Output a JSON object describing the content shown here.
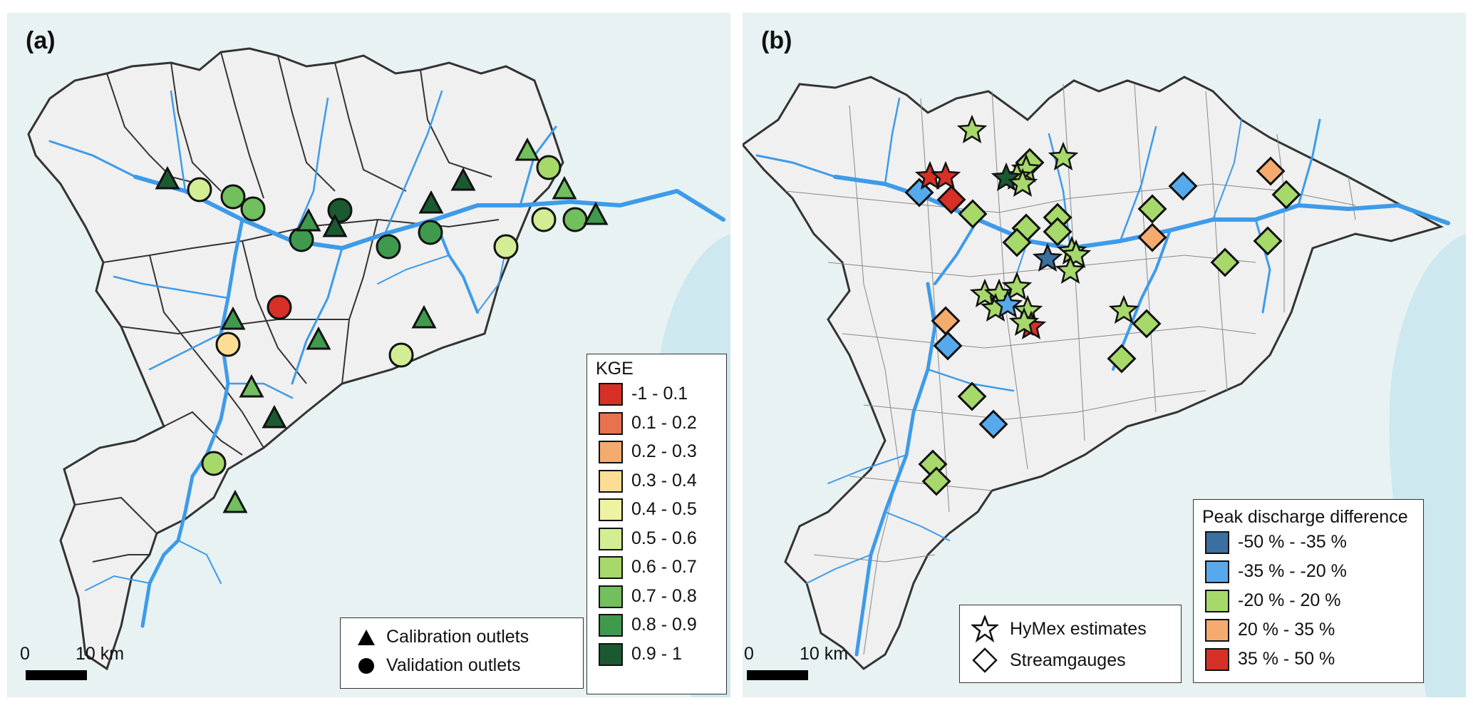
{
  "panel_a": {
    "label": "(a)",
    "kge_legend": {
      "title": "KGE",
      "classes": [
        {
          "label": "-1 - 0.1",
          "color": "#d73027"
        },
        {
          "label": "0.1 - 0.2",
          "color": "#e8714e"
        },
        {
          "label": "0.2 - 0.3",
          "color": "#f5ab6e"
        },
        {
          "label": "0.3 - 0.4",
          "color": "#fbde93"
        },
        {
          "label": "0.4 - 0.5",
          "color": "#eef2a3"
        },
        {
          "label": "0.5 - 0.6",
          "color": "#d2ed93"
        },
        {
          "label": "0.6 - 0.7",
          "color": "#a6d96a"
        },
        {
          "label": "0.7 - 0.8",
          "color": "#71bf5d"
        },
        {
          "label": "0.8 - 0.9",
          "color": "#3f9a4d"
        },
        {
          "label": "0.9 - 1",
          "color": "#1b5a31"
        }
      ]
    },
    "outlet_legend": {
      "calibration": "Calibration outlets",
      "validation": "Validation outlets"
    },
    "scale": {
      "zero": "0",
      "ten": "10 km"
    }
  },
  "panel_b": {
    "label": "(b)",
    "symbol_legend": {
      "hymex": "HyMex estimates",
      "streamgauges": "Streamgauges"
    },
    "peak_legend": {
      "title": "Peak discharge difference",
      "classes": [
        {
          "label": "-50 % - -35 %",
          "color": "#3a6fa0"
        },
        {
          "label": "-35 % - -20 %",
          "color": "#56aaec"
        },
        {
          "label": "-20 % - 20 %",
          "color": "#a6d96a"
        },
        {
          "label": "20 % - 35 %",
          "color": "#f5ab6e"
        },
        {
          "label": "35 % - 50 %",
          "color": "#d73027"
        }
      ]
    },
    "scale": {
      "zero": "0",
      "ten": "10 km"
    }
  },
  "colors": {
    "sea": "#cde8ef",
    "background": "#e8f2f3",
    "basin": "#f0f0f0",
    "river": "#3d9be9",
    "outline": "#333333"
  }
}
